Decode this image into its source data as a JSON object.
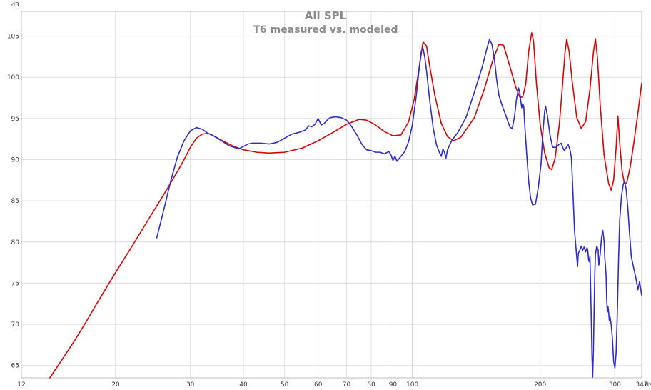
{
  "chart_data": {
    "type": "line",
    "title": "All SPL",
    "subtitle": "T6 measured vs. modeled",
    "ylabel": "dB",
    "xlabel": "Hz",
    "x_scale": "log",
    "xlim": [
      12,
      347
    ],
    "ylim": [
      63.5,
      108
    ],
    "x_ticks": [
      12,
      20,
      30,
      40,
      50,
      60,
      70,
      80,
      90,
      100,
      200,
      300,
      347
    ],
    "y_ticks": [
      65,
      70,
      75,
      80,
      85,
      90,
      95,
      100,
      105
    ],
    "grid": true,
    "series": [
      {
        "color": "#dd0000",
        "points": [
          [
            14,
            63.5
          ],
          [
            15,
            65.8
          ],
          [
            16,
            68
          ],
          [
            17,
            70.2
          ],
          [
            18,
            72.4
          ],
          [
            19,
            74.4
          ],
          [
            20,
            76.3
          ],
          [
            22,
            79.7
          ],
          [
            24,
            82.9
          ],
          [
            26,
            85.8
          ],
          [
            28,
            88.6
          ],
          [
            29,
            90
          ],
          [
            30,
            91.5
          ],
          [
            31,
            92.6
          ],
          [
            32,
            93.1
          ],
          [
            33,
            93.2
          ],
          [
            34,
            92.9
          ],
          [
            36,
            92.2
          ],
          [
            38,
            91.6
          ],
          [
            40,
            91.2
          ],
          [
            43,
            90.9
          ],
          [
            46,
            90.8
          ],
          [
            50,
            90.9
          ],
          [
            55,
            91.4
          ],
          [
            60,
            92.3
          ],
          [
            65,
            93.3
          ],
          [
            70,
            94.3
          ],
          [
            75,
            94.9
          ],
          [
            78,
            94.8
          ],
          [
            82,
            94.2
          ],
          [
            86,
            93.4
          ],
          [
            90,
            92.9
          ],
          [
            94,
            93
          ],
          [
            98,
            94.6
          ],
          [
            101,
            97.3
          ],
          [
            104,
            101.5
          ],
          [
            106,
            104.3
          ],
          [
            108,
            103.8
          ],
          [
            110,
            101.2
          ],
          [
            113,
            97.8
          ],
          [
            117,
            94.4
          ],
          [
            121,
            92.8
          ],
          [
            125,
            92.3
          ],
          [
            130,
            92.7
          ],
          [
            140,
            95.1
          ],
          [
            148,
            98.7
          ],
          [
            155,
            102.2
          ],
          [
            160,
            104
          ],
          [
            164,
            103.9
          ],
          [
            170,
            101.2
          ],
          [
            175,
            98.9
          ],
          [
            179,
            97.6
          ],
          [
            182,
            97.6
          ],
          [
            185,
            99.2
          ],
          [
            188,
            103.2
          ],
          [
            191,
            105.4
          ],
          [
            193,
            104.4
          ],
          [
            196,
            99.3
          ],
          [
            200,
            94.3
          ],
          [
            205,
            90.8
          ],
          [
            210,
            89
          ],
          [
            213,
            88.8
          ],
          [
            217,
            90.2
          ],
          [
            222,
            94.3
          ],
          [
            226,
            99.3
          ],
          [
            229,
            103.1
          ],
          [
            231,
            104.6
          ],
          [
            234,
            103.2
          ],
          [
            238,
            99.5
          ],
          [
            244,
            95.1
          ],
          [
            250,
            93.8
          ],
          [
            256,
            94.6
          ],
          [
            262,
            98.5
          ],
          [
            267,
            103
          ],
          [
            270,
            104.7
          ],
          [
            273,
            102.3
          ],
          [
            277,
            96.7
          ],
          [
            283,
            90.5
          ],
          [
            290,
            87.1
          ],
          [
            294,
            86.3
          ],
          [
            298,
            87.5
          ],
          [
            302,
            91.4
          ],
          [
            305,
            95.3
          ],
          [
            308,
            92
          ],
          [
            312,
            88.6
          ],
          [
            316,
            87.1
          ],
          [
            320,
            87.2
          ],
          [
            326,
            89.1
          ],
          [
            332,
            91.8
          ],
          [
            339,
            95.2
          ],
          [
            347,
            99.3
          ]
        ]
      },
      {
        "color": "#2c2cd0",
        "points": [
          [
            25,
            80.5
          ],
          [
            26,
            84
          ],
          [
            27,
            87.5
          ],
          [
            28,
            90.4
          ],
          [
            29,
            92.3
          ],
          [
            30,
            93.5
          ],
          [
            31,
            93.9
          ],
          [
            32,
            93.7
          ],
          [
            33,
            93.2
          ],
          [
            34,
            92.9
          ],
          [
            35,
            92.5
          ],
          [
            36,
            92.1
          ],
          [
            37,
            91.7
          ],
          [
            38,
            91.5
          ],
          [
            39,
            91.3
          ],
          [
            40,
            91.6
          ],
          [
            41,
            91.9
          ],
          [
            42,
            92
          ],
          [
            44,
            92
          ],
          [
            46,
            91.9
          ],
          [
            48,
            92.1
          ],
          [
            50,
            92.6
          ],
          [
            52,
            93.1
          ],
          [
            54,
            93.3
          ],
          [
            56,
            93.6
          ],
          [
            57,
            94.1
          ],
          [
            58,
            94
          ],
          [
            59,
            94.3
          ],
          [
            60,
            95
          ],
          [
            61,
            94.2
          ],
          [
            62,
            94.4
          ],
          [
            63,
            94.8
          ],
          [
            64,
            95.1
          ],
          [
            66,
            95.2
          ],
          [
            68,
            95.1
          ],
          [
            70,
            94.8
          ],
          [
            72,
            94
          ],
          [
            74,
            93
          ],
          [
            76,
            91.9
          ],
          [
            78,
            91.2
          ],
          [
            80,
            91.1
          ],
          [
            82,
            90.9
          ],
          [
            84,
            90.9
          ],
          [
            86,
            90.7
          ],
          [
            88,
            91
          ],
          [
            89,
            90.6
          ],
          [
            90,
            89.9
          ],
          [
            91,
            90.4
          ],
          [
            92,
            89.8
          ],
          [
            94,
            90.4
          ],
          [
            96,
            91
          ],
          [
            98,
            92.2
          ],
          [
            100,
            94.2
          ],
          [
            102,
            97.5
          ],
          [
            104,
            101.5
          ],
          [
            105,
            103.2
          ],
          [
            106,
            103.5
          ],
          [
            107,
            102.4
          ],
          [
            108,
            100.8
          ],
          [
            110,
            97
          ],
          [
            112,
            93.8
          ],
          [
            114,
            91.8
          ],
          [
            116,
            90.8
          ],
          [
            117,
            90.4
          ],
          [
            118,
            91.3
          ],
          [
            119,
            90.9
          ],
          [
            120,
            90.2
          ],
          [
            121,
            91.2
          ],
          [
            124,
            92.4
          ],
          [
            128,
            93.3
          ],
          [
            134,
            95.2
          ],
          [
            140,
            98.2
          ],
          [
            146,
            101.2
          ],
          [
            150,
            103.6
          ],
          [
            152,
            104.6
          ],
          [
            154,
            104
          ],
          [
            156,
            102.3
          ],
          [
            158,
            99.7
          ],
          [
            160,
            97.8
          ],
          [
            162,
            96.9
          ],
          [
            164,
            96.1
          ],
          [
            166,
            95.4
          ],
          [
            168,
            94.6
          ],
          [
            170,
            93.9
          ],
          [
            172,
            93.8
          ],
          [
            174,
            95.2
          ],
          [
            176,
            97.4
          ],
          [
            178,
            98.7
          ],
          [
            179,
            98.2
          ],
          [
            180,
            97.2
          ],
          [
            181,
            96.3
          ],
          [
            182,
            96.8
          ],
          [
            183,
            96.5
          ],
          [
            184,
            94.2
          ],
          [
            186,
            90.6
          ],
          [
            188,
            87.3
          ],
          [
            190,
            85.3
          ],
          [
            192,
            84.5
          ],
          [
            195,
            84.6
          ],
          [
            198,
            86.6
          ],
          [
            201,
            89.5
          ],
          [
            203,
            93.3
          ],
          [
            205,
            95.9
          ],
          [
            206,
            96.5
          ],
          [
            208,
            95.4
          ],
          [
            211,
            93
          ],
          [
            214,
            91.5
          ],
          [
            218,
            91.5
          ],
          [
            221,
            91.8
          ],
          [
            224,
            92
          ],
          [
            226,
            91.5
          ],
          [
            228,
            91.1
          ],
          [
            230,
            91.4
          ],
          [
            233,
            91.8
          ],
          [
            235,
            91.3
          ],
          [
            237,
            90.2
          ],
          [
            239,
            86
          ],
          [
            241,
            81.4
          ],
          [
            243,
            79.2
          ],
          [
            245,
            77
          ],
          [
            246,
            78.6
          ],
          [
            248,
            79
          ],
          [
            250,
            79.5
          ],
          [
            252,
            79
          ],
          [
            254,
            79.4
          ],
          [
            256,
            78.8
          ],
          [
            258,
            79.3
          ],
          [
            259,
            79
          ],
          [
            260,
            77.9
          ],
          [
            261,
            77.6
          ],
          [
            262,
            78.2
          ],
          [
            263,
            74.5
          ],
          [
            264,
            70.5
          ],
          [
            265,
            66
          ],
          [
            266,
            63.6
          ],
          [
            267,
            66.8
          ],
          [
            268,
            71.5
          ],
          [
            269,
            76
          ],
          [
            270,
            78.5
          ],
          [
            272,
            79.5
          ],
          [
            274,
            79
          ],
          [
            275,
            77.2
          ],
          [
            277,
            78.5
          ],
          [
            279,
            80.5
          ],
          [
            281,
            81.4
          ],
          [
            283,
            80.1
          ],
          [
            284,
            78.2
          ],
          [
            286,
            76
          ],
          [
            287,
            73
          ],
          [
            288,
            71.5
          ],
          [
            289,
            72.2
          ],
          [
            290,
            71.5
          ],
          [
            291,
            70.5
          ],
          [
            292,
            71
          ],
          [
            294,
            70
          ],
          [
            296,
            68.3
          ],
          [
            297,
            66.9
          ],
          [
            298,
            65.5
          ],
          [
            300,
            64.7
          ],
          [
            302,
            66.5
          ],
          [
            304,
            71.3
          ],
          [
            306,
            77.7
          ],
          [
            308,
            82.7
          ],
          [
            311,
            85.6
          ],
          [
            314,
            87
          ],
          [
            316,
            87.4
          ],
          [
            319,
            86.4
          ],
          [
            322,
            84
          ],
          [
            325,
            80.9
          ],
          [
            328,
            78.2
          ],
          [
            332,
            76.9
          ],
          [
            336,
            75.7
          ],
          [
            340,
            74.2
          ],
          [
            343,
            75.2
          ],
          [
            347,
            73.5
          ]
        ]
      }
    ]
  }
}
